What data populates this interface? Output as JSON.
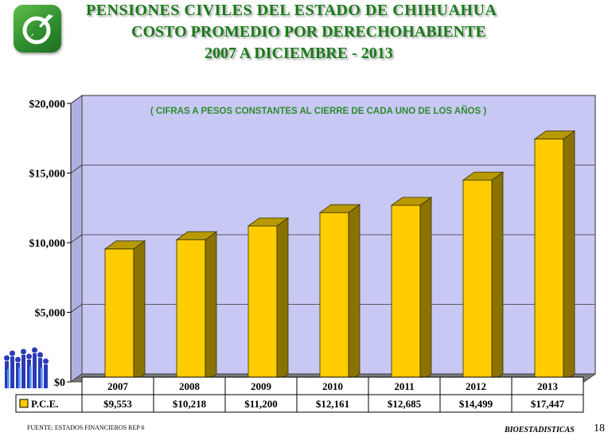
{
  "header": {
    "title_line1": "PENSIONES  CIVILES  DEL  ESTADO  DE  CHIHUAHUA",
    "title_line2": "COSTO PROMEDIO POR DERECHOHABIENTE",
    "title_line3": "2007  A  DICIEMBRE -  2013"
  },
  "chart_data": {
    "type": "bar",
    "subtitle": "( CIFRAS  A  PESOS CONSTANTES AL CIERRE DE CADA UNO DE LOS AÑOS )",
    "categories": [
      "2007",
      "2008",
      "2009",
      "2010",
      "2011",
      "2012",
      "2013"
    ],
    "series": [
      {
        "name": "P.C.E.",
        "values": [
          9553,
          10218,
          11200,
          12161,
          12685,
          14499,
          17447
        ],
        "value_labels": [
          "$9,553",
          "$10,218",
          "$11,200",
          "$12,161",
          "$12,685",
          "$14,499",
          "$17,447"
        ]
      }
    ],
    "y_ticks": [
      0,
      5000,
      10000,
      15000,
      20000
    ],
    "y_tick_labels": [
      "$0",
      "$5,000",
      "$10,000",
      "$15,000",
      "$20,000"
    ],
    "ylim": [
      0,
      20000
    ],
    "grid": true,
    "legend": "data-table-bottom",
    "colors": {
      "bar_front": "#ffcc00",
      "bar_side": "#8a7200",
      "bar_top": "#b89a00",
      "plot_bg": "#c8c8f4",
      "floor": "#7a7a7a",
      "title": "#1a7a1a",
      "subtitle": "#2e8b2e"
    }
  },
  "footer": {
    "source": "FUENTE: ESTADOS FINANCIEROS REP 6",
    "dept": "BIOESTADISTICAS",
    "page": "18"
  }
}
